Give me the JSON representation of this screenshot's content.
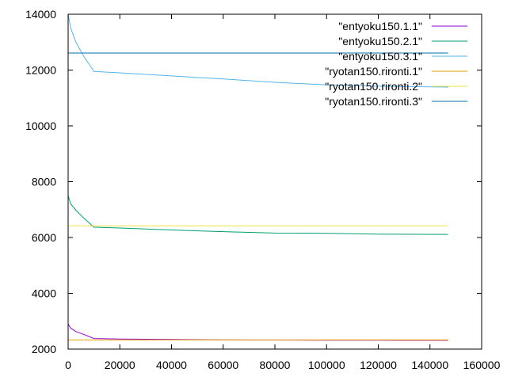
{
  "chart_data": {
    "type": "line",
    "title": "",
    "xlabel": "",
    "ylabel": "",
    "xlim": [
      0,
      160000
    ],
    "ylim": [
      2000,
      14000
    ],
    "xticks": [
      0,
      20000,
      40000,
      60000,
      80000,
      100000,
      120000,
      140000,
      160000
    ],
    "yticks": [
      2000,
      4000,
      6000,
      8000,
      10000,
      12000,
      14000
    ],
    "grid": false,
    "legend_position": "top-right",
    "series": [
      {
        "name": "\"entyoku150.1.1\"",
        "color": "#9400d3",
        "x": [
          0,
          1000,
          3000,
          6000,
          10000,
          20000,
          40000,
          60000,
          80000,
          100000,
          120000,
          147000
        ],
        "y": [
          2900,
          2750,
          2630,
          2530,
          2380,
          2360,
          2345,
          2330,
          2325,
          2320,
          2318,
          2315
        ]
      },
      {
        "name": "\"entyoku150.2.1\"",
        "color": "#009e73",
        "x": [
          0,
          1000,
          3000,
          6000,
          10000,
          20000,
          40000,
          60000,
          80000,
          100000,
          120000,
          147000
        ],
        "y": [
          7500,
          7200,
          6980,
          6700,
          6370,
          6340,
          6270,
          6210,
          6160,
          6150,
          6120,
          6110
        ]
      },
      {
        "name": "\"entyoku150.3.1\"",
        "color": "#56b4e9",
        "x": [
          0,
          1000,
          3000,
          6000,
          10000,
          20000,
          40000,
          60000,
          80000,
          100000,
          120000,
          147000
        ],
        "y": [
          14000,
          13500,
          13000,
          12500,
          11950,
          11900,
          11790,
          11680,
          11560,
          11470,
          11420,
          11390
        ]
      },
      {
        "name": "\"ryotan150.rironti.1\"",
        "color": "#e69f00",
        "x": [
          0,
          147000
        ],
        "y": [
          2330,
          2330
        ]
      },
      {
        "name": "\"ryotan150.rironti.2\"",
        "color": "#f0e442",
        "x": [
          0,
          147000
        ],
        "y": [
          6420,
          6420
        ]
      },
      {
        "name": "\"ryotan150.rironti.3\"",
        "color": "#0072b2",
        "x": [
          0,
          147000
        ],
        "y": [
          12610,
          12610
        ]
      }
    ]
  }
}
